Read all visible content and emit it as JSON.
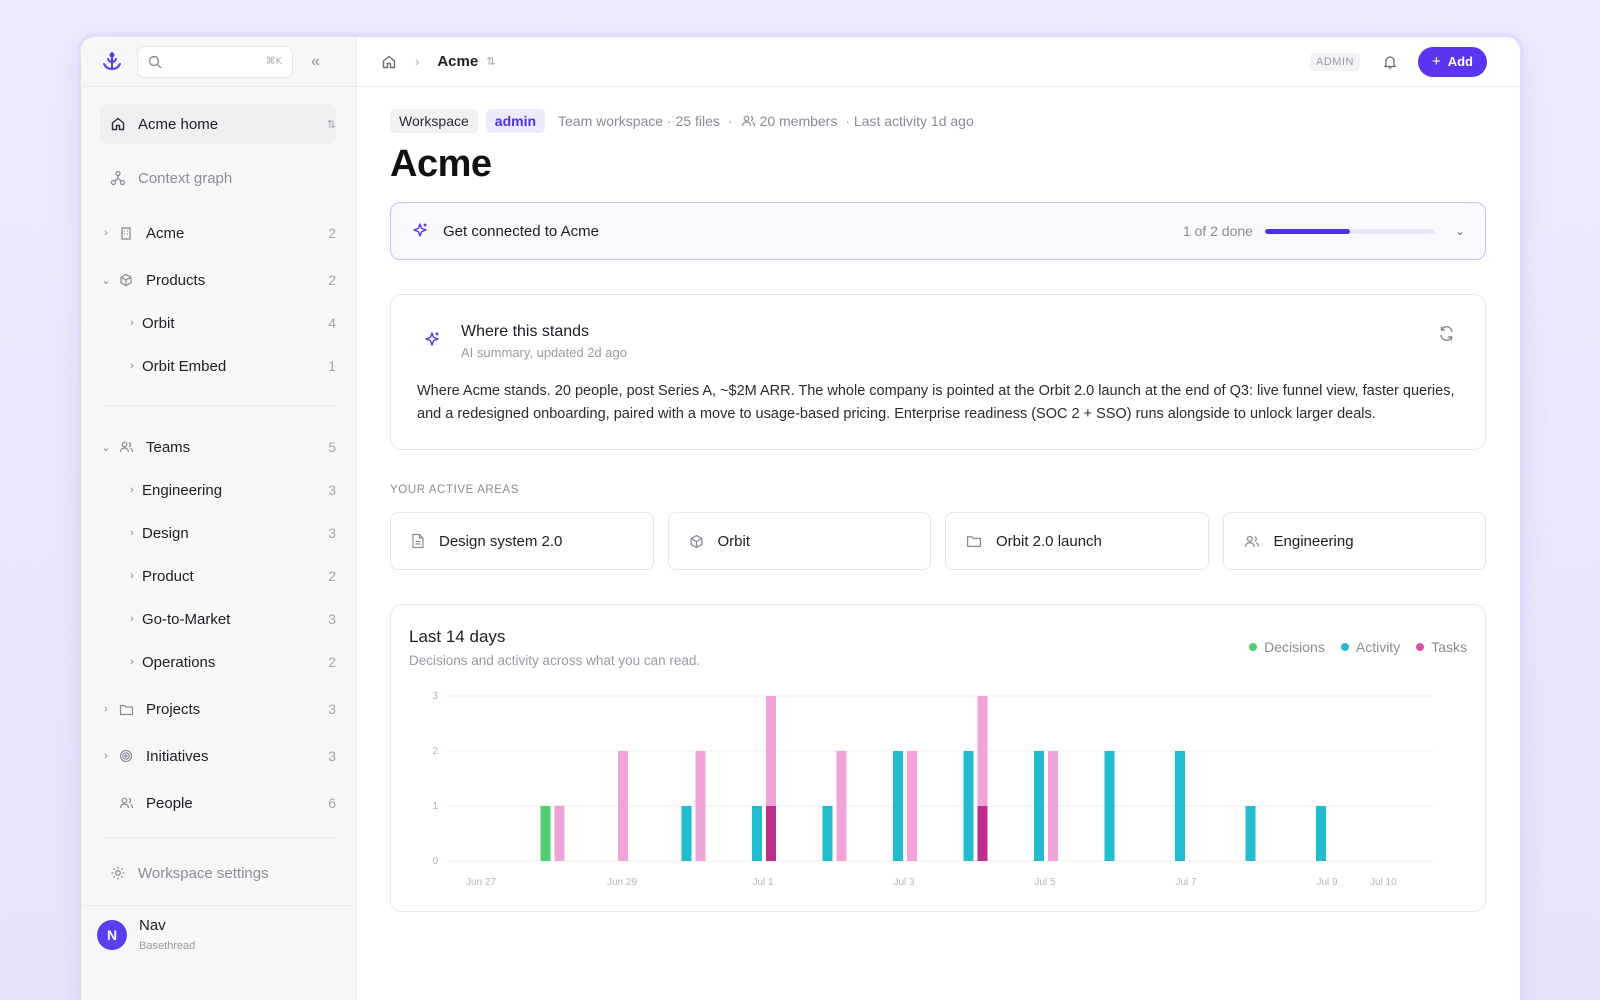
{
  "sidebar": {
    "search_shortcut": "⌘K",
    "home": {
      "label": "Acme home"
    },
    "context_graph": {
      "label": "Context graph"
    },
    "acme": {
      "label": "Acme",
      "count": "2"
    },
    "products": {
      "label": "Products",
      "count": "2"
    },
    "orbit": {
      "label": "Orbit",
      "count": "4"
    },
    "orbit_embed": {
      "label": "Orbit Embed",
      "count": "1"
    },
    "teams": {
      "label": "Teams",
      "count": "5"
    },
    "engineering": {
      "label": "Engineering",
      "count": "3"
    },
    "design": {
      "label": "Design",
      "count": "3"
    },
    "product": {
      "label": "Product",
      "count": "2"
    },
    "gtm": {
      "label": "Go-to-Market",
      "count": "3"
    },
    "operations": {
      "label": "Operations",
      "count": "2"
    },
    "projects": {
      "label": "Projects",
      "count": "3"
    },
    "initiatives": {
      "label": "Initiatives",
      "count": "3"
    },
    "people": {
      "label": "People",
      "count": "6"
    },
    "settings": {
      "label": "Workspace settings"
    },
    "user": {
      "initial": "N",
      "name": "Nav",
      "org": "Basethread"
    }
  },
  "topbar": {
    "breadcrumb": "Acme",
    "role": "ADMIN",
    "add_label": "Add"
  },
  "page": {
    "chip_workspace": "Workspace",
    "chip_admin": "admin",
    "meta_files": "Team workspace · 25 files",
    "meta_members": "20 members",
    "meta_activity": "· Last activity 1d ago",
    "title": "Acme"
  },
  "connect": {
    "label": "Get connected to Acme",
    "progress_text": "1 of 2 done",
    "progress_fraction": 0.5
  },
  "summary": {
    "title": "Where this stands",
    "subtitle": "AI summary, updated 2d ago",
    "body_lead": "Where Acme stands.",
    "body": " 20 people, post Series A, ~$2M ARR. The whole company is pointed at the Orbit 2.0 launch at the end of Q3: live funnel view, faster queries, and a redesigned onboarding, paired with a move to usage-based pricing. Enterprise readiness (SOC 2 + SSO) runs alongside to unlock larger deals."
  },
  "areas": {
    "label": "YOUR ACTIVE AREAS",
    "items": [
      {
        "label": "Design system 2.0",
        "icon": "document-icon"
      },
      {
        "label": "Orbit",
        "icon": "cube-icon"
      },
      {
        "label": "Orbit 2.0 launch",
        "icon": "folder-icon"
      },
      {
        "label": "Engineering",
        "icon": "people-icon"
      }
    ]
  },
  "colors": {
    "accent": "#5b35f0",
    "decisions": "#4fcf72",
    "activity": "#22bccc",
    "tasks": "#f0a3d6",
    "tasks_dark": "#bd2e8a"
  },
  "chart_data": {
    "type": "bar",
    "title": "Last 14 days",
    "subtitle": "Decisions and activity across what you can read.",
    "legend": [
      "Decisions",
      "Activity",
      "Tasks"
    ],
    "legend_position": "top-right",
    "ylim": [
      0,
      3
    ],
    "yticks": [
      "0",
      "1",
      "2",
      "3"
    ],
    "x_tick_labels": [
      "Jun 27",
      "Jun 29",
      "Jul 1",
      "Jul 3",
      "Jul 5",
      "Jul 7",
      "Jul 9",
      "Jul 10"
    ],
    "grid": true,
    "days": [
      "Jun 27",
      "Jun 28",
      "Jun 29",
      "Jun 30",
      "Jul 1",
      "Jul 2",
      "Jul 3",
      "Jul 4",
      "Jul 5",
      "Jul 6",
      "Jul 7",
      "Jul 8",
      "Jul 9",
      "Jul 10"
    ],
    "series": [
      {
        "name": "Decisions",
        "values": [
          0,
          1,
          0,
          0,
          0,
          0,
          0,
          0,
          0,
          0,
          0,
          0,
          0,
          0
        ]
      },
      {
        "name": "Activity",
        "values": [
          0,
          0,
          0,
          1,
          1,
          1,
          2,
          2,
          2,
          2,
          2,
          1,
          1,
          0
        ]
      },
      {
        "name": "Tasks",
        "values": [
          0,
          1,
          2,
          2,
          3,
          2,
          2,
          3,
          2,
          0,
          0,
          0,
          0,
          0
        ]
      }
    ]
  }
}
